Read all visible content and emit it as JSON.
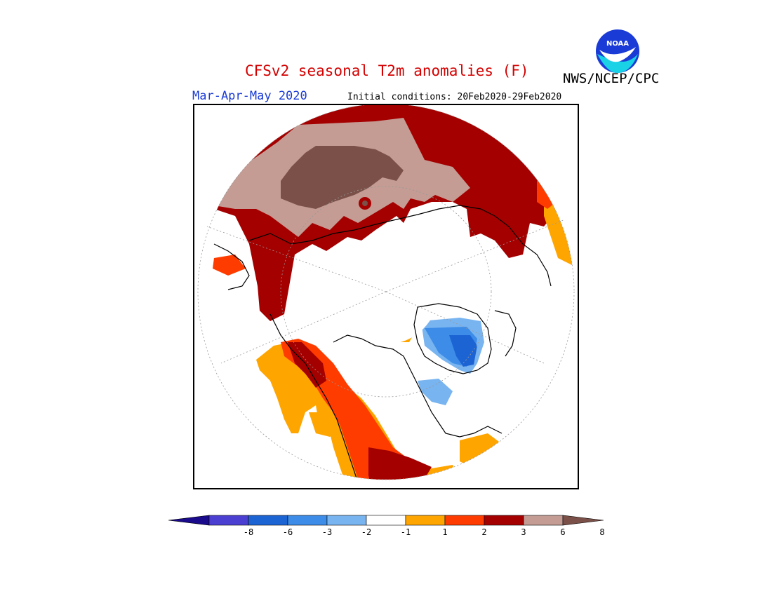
{
  "header": {
    "title": "CFSv2 seasonal T2m anomalies (F)",
    "agency": "NWS/NCEP/CPC",
    "season": "Mar-Apr-May 2020",
    "initial_conditions": "Initial conditions: 20Feb2020-29Feb2020",
    "logo_text": "NOAA"
  },
  "colorbar": {
    "ticks": [
      "-8",
      "-6",
      "-3",
      "-2",
      "-1",
      "1",
      "2",
      "3",
      "6",
      "8"
    ],
    "colors": [
      "#1a0a8c",
      "#4a3fd0",
      "#1c64d4",
      "#3c8ce8",
      "#78b4f0",
      "#ffffff",
      "#ffa500",
      "#ff3c00",
      "#a50000",
      "#c49c94",
      "#7a5048"
    ]
  }
}
